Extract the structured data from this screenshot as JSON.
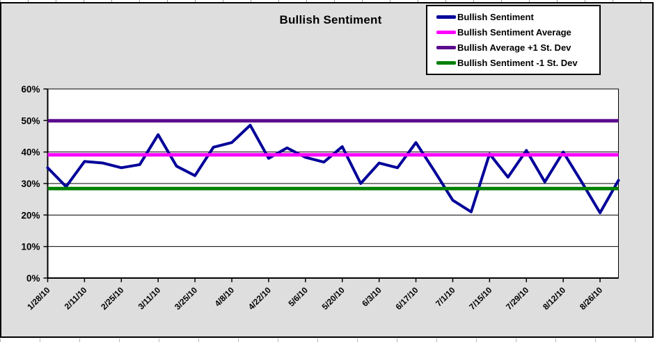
{
  "chart_data": {
    "type": "line",
    "title": "Bullish Sentiment",
    "xlabel": "",
    "ylabel": "",
    "ylim": [
      0,
      60
    ],
    "ytick_step": 10,
    "ytick_labels": [
      "0%",
      "10%",
      "20%",
      "30%",
      "40%",
      "50%",
      "60%"
    ],
    "grid": true,
    "legend_position": "top-right",
    "x": [
      "1/28/10",
      "2/4/10",
      "2/11/10",
      "2/18/10",
      "2/25/10",
      "3/4/10",
      "3/11/10",
      "3/18/10",
      "3/25/10",
      "4/1/10",
      "4/8/10",
      "4/15/10",
      "4/22/10",
      "4/29/10",
      "5/6/10",
      "5/13/10",
      "5/20/10",
      "5/27/10",
      "6/3/10",
      "6/10/10",
      "6/17/10",
      "6/24/10",
      "7/1/10",
      "7/8/10",
      "7/15/10",
      "7/22/10",
      "7/29/10",
      "8/5/10",
      "8/12/10",
      "8/19/10",
      "8/26/10",
      "9/2/10"
    ],
    "x_tick_every": 2,
    "x_tick_labels": [
      "1/28/10",
      "2/11/10",
      "2/25/10",
      "3/11/10",
      "3/25/10",
      "4/8/10",
      "4/22/10",
      "5/6/10",
      "5/20/10",
      "6/3/10",
      "6/17/10",
      "7/1/10",
      "7/15/10",
      "7/29/10",
      "8/12/10",
      "8/26/10"
    ],
    "series": [
      {
        "name": "Bullish Sentiment",
        "kind": "line",
        "color": "#000099",
        "values": [
          35,
          29,
          37,
          36.5,
          35,
          36,
          45.5,
          35.5,
          32.5,
          41.5,
          43,
          48.5,
          38,
          41.3,
          38.3,
          36.8,
          41.7,
          30,
          36.5,
          35,
          43,
          34,
          24.7,
          21,
          39.4,
          32,
          40.5,
          30.5,
          40,
          30.5,
          20.7,
          31
        ]
      },
      {
        "name": "Bullish Sentiment Average",
        "kind": "hline",
        "color": "#FF00FF",
        "value": 39.1
      },
      {
        "name": "Bullish Average +1 St. Dev",
        "kind": "hline",
        "color": "#5B0B8D",
        "value": 49.9
      },
      {
        "name": "Bullish Sentiment -1 St. Dev",
        "kind": "hline",
        "color": "#008000",
        "value": 28.4
      }
    ],
    "colors": {
      "chart_background": "#DEDEDE",
      "plot_background": "#FFFFFF",
      "gridline": "#000000",
      "axis": "#000000"
    }
  }
}
